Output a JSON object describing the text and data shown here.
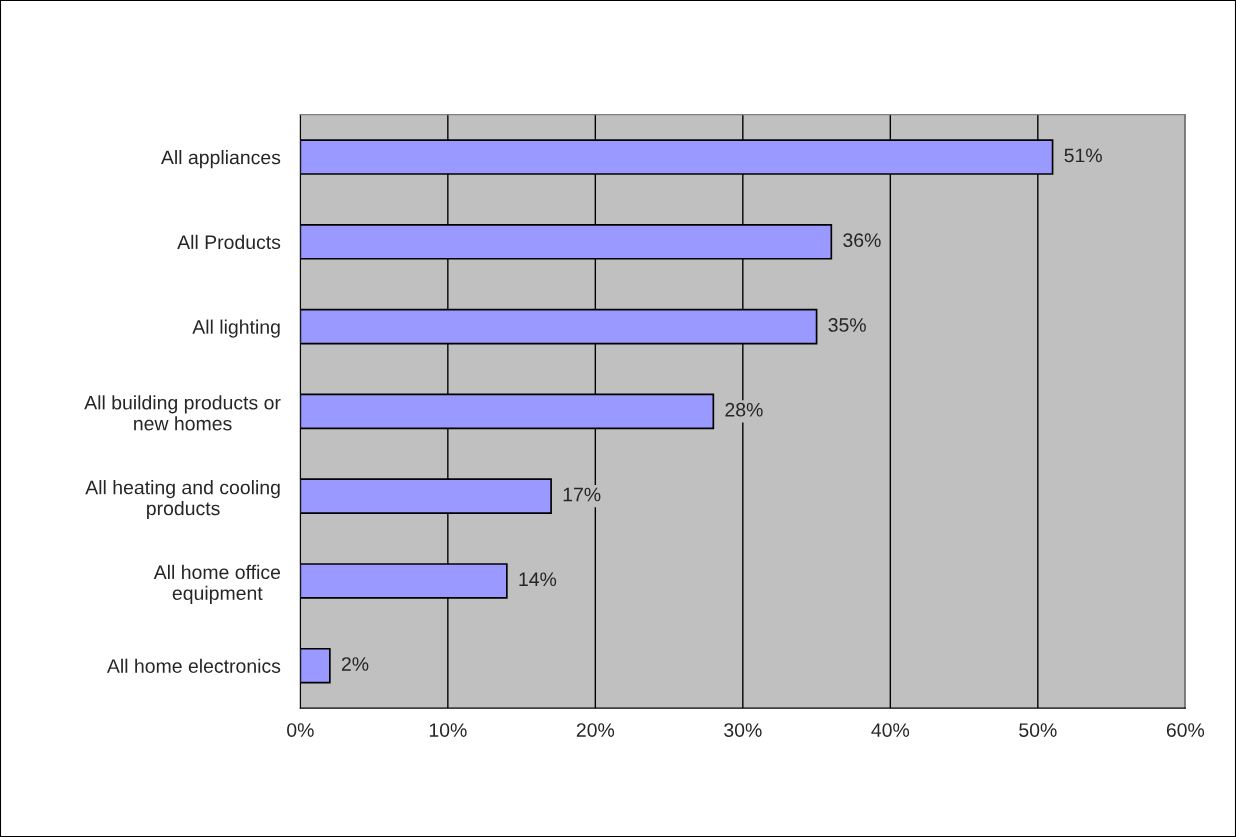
{
  "chart_data": {
    "type": "bar",
    "orientation": "horizontal",
    "categories": [
      "All appliances",
      "All Products",
      "All lighting",
      "All building products or\nnew homes",
      "All heating and cooling\nproducts",
      "All home office\nequipment",
      "All home electronics"
    ],
    "values": [
      51,
      36,
      35,
      28,
      17,
      14,
      2
    ],
    "value_labels": [
      "51%",
      "36%",
      "35%",
      "28%",
      "17%",
      "14%",
      "2%"
    ],
    "color": "#9999ff",
    "xlim": [
      0,
      60
    ],
    "xticks": [
      {
        "value": 0,
        "label": "0%"
      },
      {
        "value": 10,
        "label": "10%"
      },
      {
        "value": 20,
        "label": "20%"
      },
      {
        "value": 30,
        "label": "30%"
      },
      {
        "value": 40,
        "label": "40%"
      },
      {
        "value": 50,
        "label": "50%"
      },
      {
        "value": 60,
        "label": "60%"
      }
    ],
    "grid": "x"
  }
}
